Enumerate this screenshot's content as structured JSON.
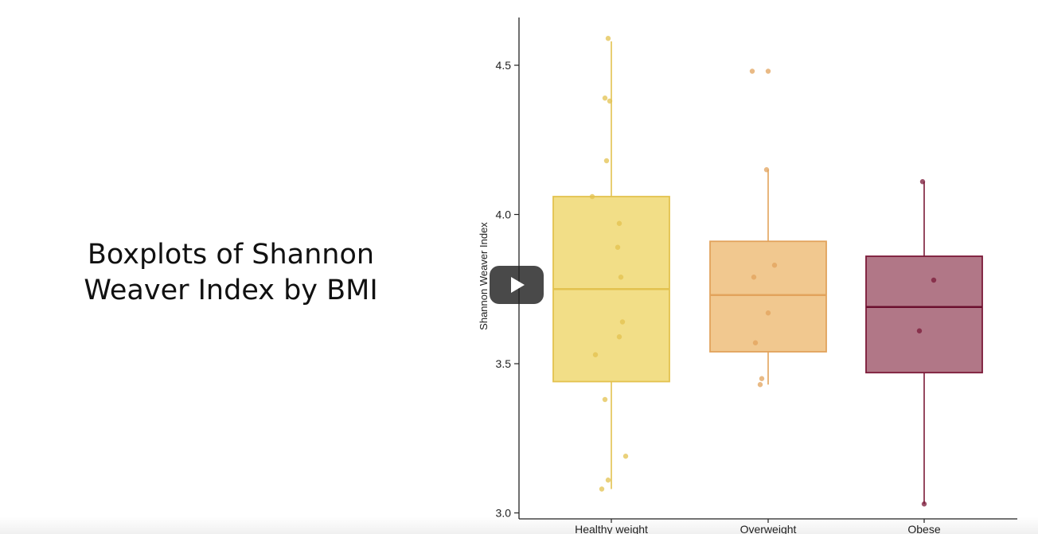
{
  "slide": {
    "title_line1": "Boxplots of Shannon",
    "title_line2": "Weaver Index by BMI"
  },
  "player": {
    "play_icon": "play-icon"
  },
  "chart_data": {
    "type": "boxplot",
    "ylabel": "Shannon Weaver Index",
    "xlabel": "",
    "ylim": [
      2.98,
      4.66
    ],
    "yticks": [
      3.0,
      3.5,
      4.0,
      4.5
    ],
    "ytick_labels": [
      "3.0",
      "3.5",
      "4.0",
      "4.5"
    ],
    "grid": false,
    "legend": "none",
    "categories": [
      "Healthy weight",
      "Overweight",
      "Obese"
    ],
    "boxes": [
      {
        "category": "Healthy weight",
        "whisker_low": 3.08,
        "q1": 3.44,
        "median": 3.75,
        "q3": 4.06,
        "whisker_high": 4.58,
        "fill": "#f1da7a",
        "stroke": "#e3c24f",
        "points": [
          [
            -0.02,
            4.59
          ],
          [
            -0.04,
            4.39
          ],
          [
            -0.01,
            4.38
          ],
          [
            -0.03,
            4.18
          ],
          [
            -0.12,
            4.06
          ],
          [
            0.05,
            3.97
          ],
          [
            0.04,
            3.89
          ],
          [
            0.06,
            3.79
          ],
          [
            0.07,
            3.64
          ],
          [
            0.05,
            3.59
          ],
          [
            -0.1,
            3.53
          ],
          [
            -0.04,
            3.38
          ],
          [
            0.09,
            3.19
          ],
          [
            -0.02,
            3.11
          ],
          [
            -0.06,
            3.08
          ]
        ]
      },
      {
        "category": "Overweight",
        "whisker_low": 3.43,
        "q1": 3.54,
        "median": 3.73,
        "q3": 3.91,
        "whisker_high": 4.15,
        "fill": "#efc283",
        "stroke": "#e2a35c",
        "points": [
          [
            -0.1,
            4.48
          ],
          [
            0.0,
            4.48
          ],
          [
            -0.01,
            4.15
          ],
          [
            0.04,
            3.83
          ],
          [
            -0.09,
            3.79
          ],
          [
            0.0,
            3.67
          ],
          [
            -0.08,
            3.57
          ],
          [
            -0.04,
            3.45
          ],
          [
            -0.05,
            3.43
          ]
        ]
      },
      {
        "category": "Obese",
        "whisker_low": 3.03,
        "q1": 3.47,
        "median": 3.69,
        "q3": 3.86,
        "whisker_high": 4.11,
        "fill": "#a8687a",
        "stroke": "#7b1a38",
        "median_color": "#6b0f2e",
        "points": [
          [
            -0.01,
            4.11
          ],
          [
            0.06,
            3.78
          ],
          [
            -0.03,
            3.61
          ],
          [
            0.0,
            3.03
          ]
        ]
      }
    ]
  }
}
